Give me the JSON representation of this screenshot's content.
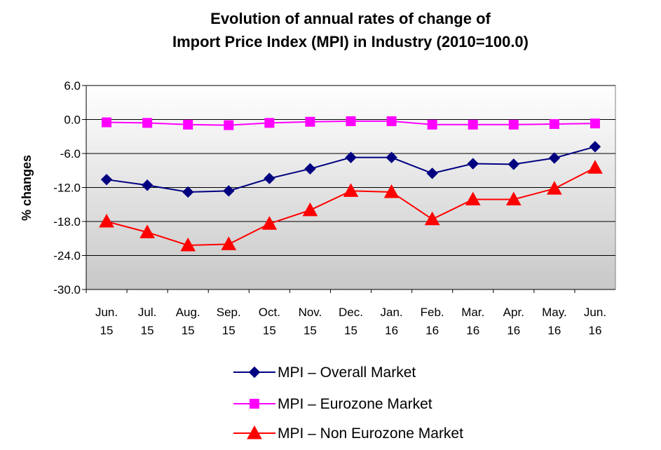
{
  "chart_data": {
    "type": "line",
    "title_lines": [
      "Evolution of annual rates of change of",
      "Import Price Index (MPI) in Industry (2010=100.0)"
    ],
    "ylabel": "% changes",
    "xlabel": "",
    "ylim": [
      -30.0,
      6.0
    ],
    "yticks": [
      "6.0",
      "0.0",
      "-6.0",
      "-12.0",
      "-18.0",
      "-24.0",
      "-30.0"
    ],
    "grid": true,
    "legend_position": "bottom",
    "categories": [
      [
        "Jun.",
        "15"
      ],
      [
        "Jul.",
        "15"
      ],
      [
        "Aug.",
        "15"
      ],
      [
        "Sep.",
        "15"
      ],
      [
        "Oct.",
        "15"
      ],
      [
        "Nov.",
        "15"
      ],
      [
        "Dec.",
        "15"
      ],
      [
        "Jan.",
        "16"
      ],
      [
        "Feb.",
        "16"
      ],
      [
        "Mar.",
        "16"
      ],
      [
        "Apr.",
        "16"
      ],
      [
        "May.",
        "16"
      ],
      [
        "Jun.",
        "16"
      ]
    ],
    "series": [
      {
        "name": "MPI – Overall Market",
        "color": "#000080",
        "marker": "diamond",
        "values": [
          -10.6,
          -11.6,
          -12.8,
          -12.6,
          -10.4,
          -8.7,
          -6.7,
          -6.7,
          -9.5,
          -7.8,
          -7.9,
          -6.8,
          -4.8
        ]
      },
      {
        "name": "MPI – Eurozone Market",
        "color": "#ff00ff",
        "marker": "square",
        "values": [
          -0.5,
          -0.6,
          -0.9,
          -1.0,
          -0.6,
          -0.4,
          -0.3,
          -0.3,
          -0.9,
          -0.9,
          -0.9,
          -0.8,
          -0.7
        ]
      },
      {
        "name": "MPI – Non Eurozone Market",
        "color": "#ff0000",
        "marker": "triangle",
        "values": [
          -18.0,
          -19.9,
          -22.2,
          -22.0,
          -18.4,
          -16.0,
          -12.6,
          -12.8,
          -17.6,
          -14.1,
          -14.1,
          -12.2,
          -8.5
        ]
      }
    ]
  }
}
